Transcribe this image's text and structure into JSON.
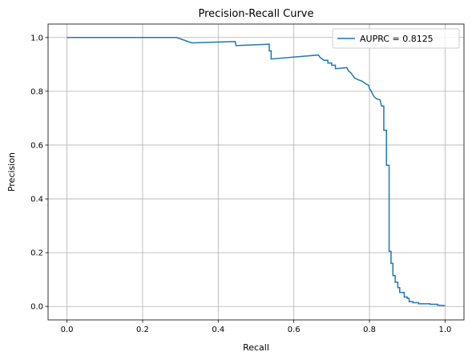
{
  "chart_data": {
    "type": "line",
    "title": "Precision-Recall Curve",
    "xlabel": "Recall",
    "ylabel": "Precision",
    "xlim": [
      -0.05,
      1.05
    ],
    "ylim": [
      -0.05,
      1.05
    ],
    "xticks": [
      0.0,
      0.2,
      0.4,
      0.6,
      0.8,
      1.0
    ],
    "yticks": [
      0.0,
      0.2,
      0.4,
      0.6,
      0.8,
      1.0
    ],
    "xtick_labels": [
      "0.0",
      "0.2",
      "0.4",
      "0.6",
      "0.8",
      "1.0"
    ],
    "ytick_labels": [
      "0.0",
      "0.2",
      "0.4",
      "0.6",
      "0.8",
      "1.0"
    ],
    "grid": true,
    "legend_position": "top-right",
    "series": [
      {
        "name": "AUPRC = 0.8125",
        "color": "#1f77b4",
        "drawstyle": "steps",
        "points": [
          [
            0.0,
            1.0
          ],
          [
            0.29,
            1.0
          ],
          [
            0.33,
            0.98
          ],
          [
            0.445,
            0.985
          ],
          [
            0.447,
            0.97
          ],
          [
            0.535,
            0.975
          ],
          [
            0.535,
            0.95
          ],
          [
            0.54,
            0.95
          ],
          [
            0.54,
            0.92
          ],
          [
            0.665,
            0.935
          ],
          [
            0.67,
            0.925
          ],
          [
            0.68,
            0.915
          ],
          [
            0.69,
            0.915
          ],
          [
            0.69,
            0.905
          ],
          [
            0.7,
            0.905
          ],
          [
            0.7,
            0.897
          ],
          [
            0.71,
            0.897
          ],
          [
            0.71,
            0.884
          ],
          [
            0.74,
            0.888
          ],
          [
            0.745,
            0.875
          ],
          [
            0.75,
            0.87
          ],
          [
            0.755,
            0.86
          ],
          [
            0.76,
            0.85
          ],
          [
            0.77,
            0.843
          ],
          [
            0.78,
            0.838
          ],
          [
            0.785,
            0.833
          ],
          [
            0.79,
            0.828
          ],
          [
            0.798,
            0.822
          ],
          [
            0.8,
            0.81
          ],
          [
            0.805,
            0.8
          ],
          [
            0.808,
            0.79
          ],
          [
            0.812,
            0.78
          ],
          [
            0.818,
            0.773
          ],
          [
            0.828,
            0.768
          ],
          [
            0.832,
            0.745
          ],
          [
            0.838,
            0.745
          ],
          [
            0.838,
            0.655
          ],
          [
            0.845,
            0.655
          ],
          [
            0.845,
            0.525
          ],
          [
            0.852,
            0.525
          ],
          [
            0.852,
            0.205
          ],
          [
            0.857,
            0.205
          ],
          [
            0.857,
            0.16
          ],
          [
            0.862,
            0.16
          ],
          [
            0.862,
            0.115
          ],
          [
            0.868,
            0.115
          ],
          [
            0.868,
            0.09
          ],
          [
            0.875,
            0.09
          ],
          [
            0.875,
            0.07
          ],
          [
            0.88,
            0.07
          ],
          [
            0.88,
            0.052
          ],
          [
            0.892,
            0.052
          ],
          [
            0.892,
            0.035
          ],
          [
            0.9,
            0.035
          ],
          [
            0.9,
            0.03
          ],
          [
            0.905,
            0.03
          ],
          [
            0.905,
            0.018
          ],
          [
            0.915,
            0.018
          ],
          [
            0.915,
            0.014
          ],
          [
            0.93,
            0.014
          ],
          [
            0.93,
            0.01
          ],
          [
            0.96,
            0.01
          ],
          [
            0.96,
            0.008
          ],
          [
            0.98,
            0.008
          ],
          [
            0.98,
            0.005
          ],
          [
            1.0,
            0.003
          ]
        ]
      }
    ]
  }
}
